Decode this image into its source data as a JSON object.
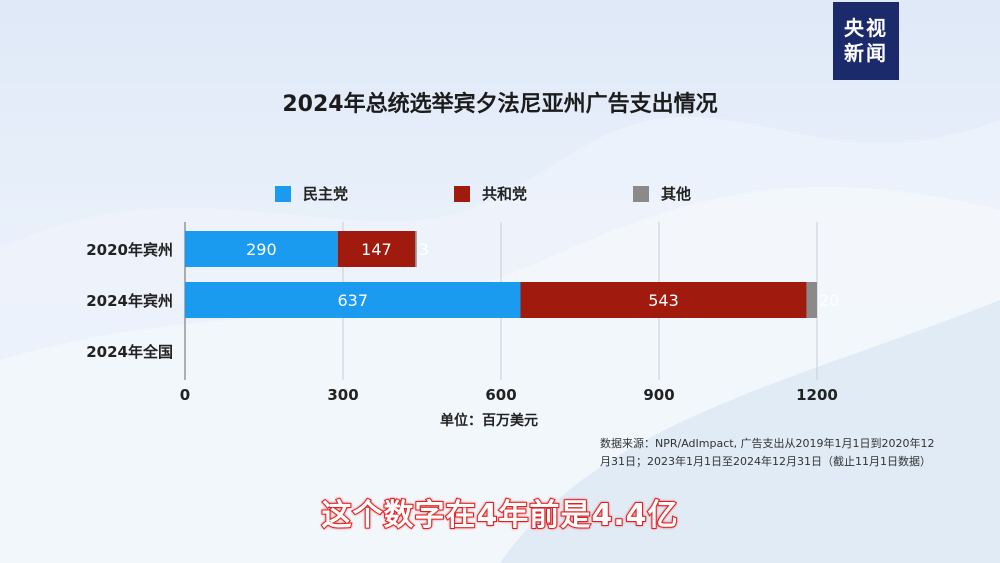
{
  "logo": {
    "line1": "央视",
    "line2": "新闻"
  },
  "subtitle_caption": "这个数字在4年前是4.4亿",
  "source_note": {
    "line1": "数据来源：NPR/AdImpact, 广告支出从2019年1月1日到2020年12",
    "line2": "月31日；2023年1月1日至2024年12月31日（截止11月1日数据）"
  },
  "unit_label": "单位：百万美元",
  "colors": {
    "democrat": "#1a9bf0",
    "republican": "#a11a0e",
    "other": "#8a8a8a",
    "logo_bg": "#1a2a6b",
    "caption_stroke": "#e02020"
  },
  "chart_data": {
    "type": "bar",
    "orientation": "horizontal",
    "stacked": true,
    "title": "2024年总统选举宾夕法尼亚州广告支出情况",
    "categories": [
      "2020年宾州",
      "2024年宾州",
      "2024年全国"
    ],
    "series": [
      {
        "name": "民主党",
        "color": "#1a9bf0",
        "values": [
          290,
          637,
          null
        ]
      },
      {
        "name": "共和党",
        "color": "#a11a0e",
        "values": [
          147,
          543,
          null
        ]
      },
      {
        "name": "其他",
        "color": "#8a8a8a",
        "values": [
          3,
          20,
          null
        ]
      }
    ],
    "xticks": [
      "0",
      "300",
      "600",
      "900",
      "1200"
    ],
    "xlim": [
      0,
      1200
    ],
    "xlabel": "单位：百万美元",
    "grid": true,
    "legend_position": "top"
  }
}
